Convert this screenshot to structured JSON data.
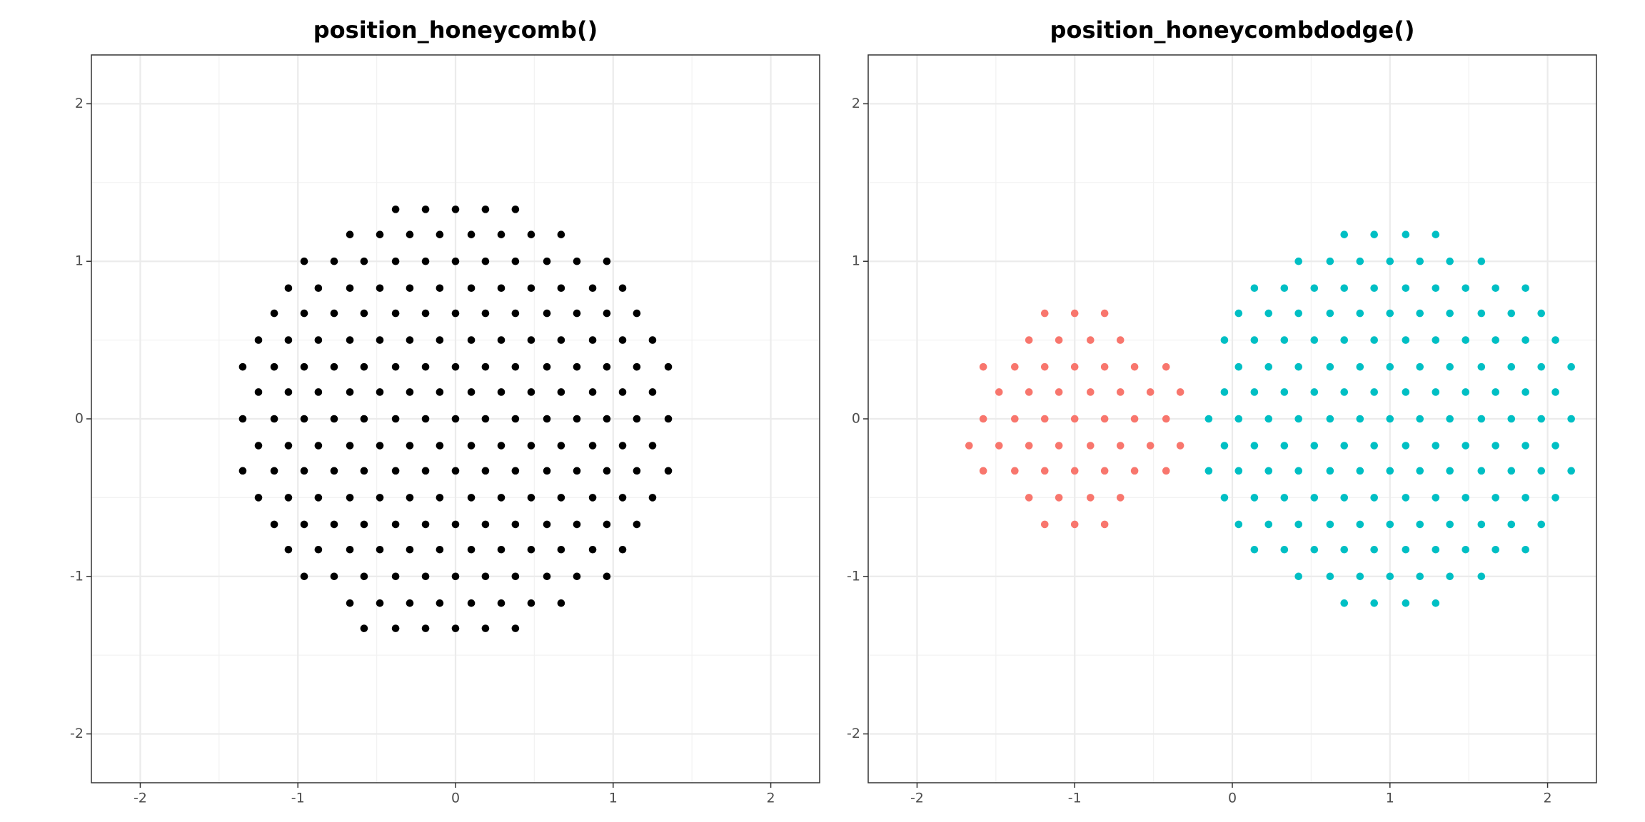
{
  "chart_data": [
    {
      "type": "scatter",
      "title": "position_honeycomb()",
      "xlim": [
        -2.31,
        2.31
      ],
      "ylim": [
        -2.31,
        2.31
      ],
      "xticks": [
        -2,
        -1,
        0,
        1,
        2
      ],
      "yticks": [
        -2,
        -1,
        0,
        1,
        2
      ],
      "minor_xticks": [
        -1.5,
        -0.5,
        0.5,
        1.5
      ],
      "minor_yticks": [
        -1.5,
        -0.5,
        0.5,
        1.5
      ],
      "grid": true,
      "series": [
        {
          "color": "#000000",
          "x": [
            -0.38,
            -0.19,
            0,
            0.19,
            0.38,
            -0.67,
            -0.48,
            -0.29,
            -0.1,
            0.1,
            0.29,
            0.48,
            0.67,
            -0.96,
            -0.77,
            -0.58,
            -0.38,
            -0.19,
            0,
            0.19,
            0.38,
            0.58,
            0.77,
            0.96,
            -1.06,
            -0.87,
            -0.67,
            -0.48,
            -0.29,
            -0.1,
            0.1,
            0.29,
            0.48,
            0.67,
            0.87,
            1.06,
            -1.15,
            -0.96,
            -0.77,
            -0.58,
            -0.38,
            -0.19,
            0,
            0.19,
            0.38,
            0.58,
            0.77,
            0.96,
            1.15,
            -1.25,
            -1.06,
            -0.87,
            -0.67,
            -0.48,
            -0.29,
            -0.1,
            0.1,
            0.29,
            0.48,
            0.67,
            0.87,
            1.06,
            1.25,
            -1.35,
            -1.15,
            -0.96,
            -0.77,
            -0.58,
            -0.38,
            -0.19,
            0,
            0.19,
            0.38,
            0.58,
            0.77,
            0.96,
            1.15,
            1.35,
            -1.25,
            -1.06,
            -0.87,
            -0.67,
            -0.48,
            -0.29,
            -0.1,
            0.1,
            0.29,
            0.48,
            0.67,
            0.87,
            1.06,
            1.25,
            -1.35,
            -1.15,
            -0.96,
            -0.77,
            -0.58,
            -0.38,
            -0.19,
            0,
            0.19,
            0.38,
            0.58,
            0.77,
            0.96,
            1.15,
            1.35,
            -1.25,
            -1.06,
            -0.87,
            -0.67,
            -0.48,
            -0.29,
            -0.1,
            0.1,
            0.29,
            0.48,
            0.67,
            0.87,
            1.06,
            1.25,
            -1.35,
            -1.15,
            -0.96,
            -0.77,
            -0.58,
            -0.38,
            -0.19,
            0,
            0.19,
            0.38,
            0.58,
            0.77,
            0.96,
            1.15,
            1.35,
            -1.25,
            -1.06,
            -0.87,
            -0.67,
            -0.48,
            -0.29,
            -0.1,
            0.1,
            0.29,
            0.48,
            0.67,
            0.87,
            1.06,
            1.25,
            -1.15,
            -0.96,
            -0.77,
            -0.58,
            -0.38,
            -0.19,
            0,
            0.19,
            0.38,
            0.58,
            0.77,
            0.96,
            1.15,
            -1.06,
            -0.87,
            -0.67,
            -0.48,
            -0.29,
            -0.1,
            0.1,
            0.29,
            0.48,
            0.67,
            0.87,
            1.06,
            -0.96,
            -0.77,
            -0.58,
            -0.38,
            -0.19,
            0,
            0.19,
            0.38,
            0.58,
            0.77,
            0.96,
            -0.67,
            -0.48,
            -0.29,
            -0.1,
            0.1,
            0.29,
            0.48,
            0.67,
            -0.58,
            -0.38,
            -0.19,
            0,
            0.19,
            0.38
          ],
          "values": [
            1.33,
            1.33,
            1.33,
            1.33,
            1.33,
            1.17,
            1.17,
            1.17,
            1.17,
            1.17,
            1.17,
            1.17,
            1.17,
            1,
            1,
            1,
            1,
            1,
            1,
            1,
            1,
            1,
            1,
            1,
            0.83,
            0.83,
            0.83,
            0.83,
            0.83,
            0.83,
            0.83,
            0.83,
            0.83,
            0.83,
            0.83,
            0.83,
            0.67,
            0.67,
            0.67,
            0.67,
            0.67,
            0.67,
            0.67,
            0.67,
            0.67,
            0.67,
            0.67,
            0.67,
            0.67,
            0.5,
            0.5,
            0.5,
            0.5,
            0.5,
            0.5,
            0.5,
            0.5,
            0.5,
            0.5,
            0.5,
            0.5,
            0.5,
            0.5,
            0.33,
            0.33,
            0.33,
            0.33,
            0.33,
            0.33,
            0.33,
            0.33,
            0.33,
            0.33,
            0.33,
            0.33,
            0.33,
            0.33,
            0.33,
            0.17,
            0.17,
            0.17,
            0.17,
            0.17,
            0.17,
            0.17,
            0.17,
            0.17,
            0.17,
            0.17,
            0.17,
            0.17,
            0.17,
            0,
            0,
            0,
            0,
            0,
            0,
            0,
            0,
            0,
            0,
            0,
            0,
            0,
            0,
            0,
            -0.17,
            -0.17,
            -0.17,
            -0.17,
            -0.17,
            -0.17,
            -0.17,
            -0.17,
            -0.17,
            -0.17,
            -0.17,
            -0.17,
            -0.17,
            -0.17,
            -0.33,
            -0.33,
            -0.33,
            -0.33,
            -0.33,
            -0.33,
            -0.33,
            -0.33,
            -0.33,
            -0.33,
            -0.33,
            -0.33,
            -0.33,
            -0.33,
            -0.33,
            -0.5,
            -0.5,
            -0.5,
            -0.5,
            -0.5,
            -0.5,
            -0.5,
            -0.5,
            -0.5,
            -0.5,
            -0.5,
            -0.5,
            -0.5,
            -0.5,
            -0.67,
            -0.67,
            -0.67,
            -0.67,
            -0.67,
            -0.67,
            -0.67,
            -0.67,
            -0.67,
            -0.67,
            -0.67,
            -0.67,
            -0.67,
            -0.83,
            -0.83,
            -0.83,
            -0.83,
            -0.83,
            -0.83,
            -0.83,
            -0.83,
            -0.83,
            -0.83,
            -0.83,
            -0.83,
            -1,
            -1,
            -1,
            -1,
            -1,
            -1,
            -1,
            -1,
            -1,
            -1,
            -1,
            -1.17,
            -1.17,
            -1.17,
            -1.17,
            -1.17,
            -1.17,
            -1.17,
            -1.17,
            -1.33,
            -1.33,
            -1.33,
            -1.33,
            -1.33,
            -1.33
          ]
        }
      ]
    },
    {
      "type": "scatter",
      "title": "position_honeycombdodge()",
      "xlim": [
        -2.31,
        2.31
      ],
      "ylim": [
        -2.31,
        2.31
      ],
      "xticks": [
        -2,
        -1,
        0,
        1,
        2
      ],
      "yticks": [
        -2,
        -1,
        0,
        1,
        2
      ],
      "minor_xticks": [
        -1.5,
        -0.5,
        0.5,
        1.5
      ],
      "minor_yticks": [
        -1.5,
        -0.5,
        0.5,
        1.5
      ],
      "grid": true,
      "series": [
        {
          "color": "#F8766D",
          "x": [
            -1.19,
            -1,
            -0.81,
            -1.29,
            -1.1,
            -0.9,
            -0.71,
            -1.58,
            -1.38,
            -1.19,
            -1,
            -0.81,
            -0.62,
            -0.42,
            -1.48,
            -1.29,
            -1.1,
            -0.9,
            -0.71,
            -0.52,
            -0.33,
            -1.58,
            -1.38,
            -1.19,
            -1,
            -0.81,
            -0.62,
            -0.42,
            -1.67,
            -1.48,
            -1.29,
            -1.1,
            -0.9,
            -0.71,
            -0.52,
            -0.33,
            -1.58,
            -1.38,
            -1.19,
            -1,
            -0.81,
            -0.62,
            -0.42,
            -1.29,
            -1.1,
            -0.9,
            -0.71,
            -1.19,
            -1,
            -0.81
          ],
          "values": [
            0.67,
            0.67,
            0.67,
            0.5,
            0.5,
            0.5,
            0.5,
            0.33,
            0.33,
            0.33,
            0.33,
            0.33,
            0.33,
            0.33,
            0.17,
            0.17,
            0.17,
            0.17,
            0.17,
            0.17,
            0.17,
            0,
            0,
            0,
            0,
            0,
            0,
            0,
            -0.17,
            -0.17,
            -0.17,
            -0.17,
            -0.17,
            -0.17,
            -0.17,
            -0.17,
            -0.33,
            -0.33,
            -0.33,
            -0.33,
            -0.33,
            -0.33,
            -0.33,
            -0.5,
            -0.5,
            -0.5,
            -0.5,
            -0.67,
            -0.67,
            -0.67
          ]
        },
        {
          "color": "#00BFC4",
          "x": [
            0.71,
            0.9,
            1.1,
            1.29,
            0.42,
            0.62,
            0.81,
            1,
            1.19,
            1.38,
            1.58,
            0.14,
            0.33,
            0.52,
            0.71,
            0.9,
            1.1,
            1.29,
            1.48,
            1.67,
            1.86,
            0.04,
            0.23,
            0.42,
            0.62,
            0.81,
            1,
            1.19,
            1.38,
            1.58,
            1.77,
            1.96,
            -0.05,
            0.14,
            0.33,
            0.52,
            0.71,
            0.9,
            1.1,
            1.29,
            1.48,
            1.67,
            1.86,
            2.05,
            0.04,
            0.23,
            0.42,
            0.62,
            0.81,
            1,
            1.19,
            1.38,
            1.58,
            1.77,
            1.96,
            2.15,
            -0.05,
            0.14,
            0.33,
            0.52,
            0.71,
            0.9,
            1.1,
            1.29,
            1.48,
            1.67,
            1.86,
            2.05,
            -0.15,
            0.04,
            0.23,
            0.42,
            0.62,
            0.81,
            1,
            1.19,
            1.38,
            1.58,
            1.77,
            1.96,
            2.15,
            -0.05,
            0.14,
            0.33,
            0.52,
            0.71,
            0.9,
            1.1,
            1.29,
            1.48,
            1.67,
            1.86,
            2.05,
            -0.15,
            0.04,
            0.23,
            0.42,
            0.62,
            0.81,
            1,
            1.19,
            1.38,
            1.58,
            1.77,
            1.96,
            2.15,
            -0.05,
            0.14,
            0.33,
            0.52,
            0.71,
            0.9,
            1.1,
            1.29,
            1.48,
            1.67,
            1.86,
            2.05,
            0.04,
            0.23,
            0.42,
            0.62,
            0.81,
            1,
            1.19,
            1.38,
            1.58,
            1.77,
            1.96,
            0.14,
            0.33,
            0.52,
            0.71,
            0.9,
            1.1,
            1.29,
            1.48,
            1.67,
            1.86,
            0.42,
            0.62,
            0.81,
            1,
            1.19,
            1.38,
            1.58,
            0.71,
            0.9,
            1.1,
            1.29
          ],
          "values": [
            1.17,
            1.17,
            1.17,
            1.17,
            1,
            1,
            1,
            1,
            1,
            1,
            1,
            0.83,
            0.83,
            0.83,
            0.83,
            0.83,
            0.83,
            0.83,
            0.83,
            0.83,
            0.83,
            0.67,
            0.67,
            0.67,
            0.67,
            0.67,
            0.67,
            0.67,
            0.67,
            0.67,
            0.67,
            0.67,
            0.5,
            0.5,
            0.5,
            0.5,
            0.5,
            0.5,
            0.5,
            0.5,
            0.5,
            0.5,
            0.5,
            0.5,
            0.33,
            0.33,
            0.33,
            0.33,
            0.33,
            0.33,
            0.33,
            0.33,
            0.33,
            0.33,
            0.33,
            0.33,
            0.17,
            0.17,
            0.17,
            0.17,
            0.17,
            0.17,
            0.17,
            0.17,
            0.17,
            0.17,
            0.17,
            0.17,
            0,
            0,
            0,
            0,
            0,
            0,
            0,
            0,
            0,
            0,
            0,
            0,
            0,
            -0.17,
            -0.17,
            -0.17,
            -0.17,
            -0.17,
            -0.17,
            -0.17,
            -0.17,
            -0.17,
            -0.17,
            -0.17,
            -0.17,
            -0.33,
            -0.33,
            -0.33,
            -0.33,
            -0.33,
            -0.33,
            -0.33,
            -0.33,
            -0.33,
            -0.33,
            -0.33,
            -0.33,
            -0.33,
            -0.5,
            -0.5,
            -0.5,
            -0.5,
            -0.5,
            -0.5,
            -0.5,
            -0.5,
            -0.5,
            -0.5,
            -0.5,
            -0.5,
            -0.67,
            -0.67,
            -0.67,
            -0.67,
            -0.67,
            -0.67,
            -0.67,
            -0.67,
            -0.67,
            -0.67,
            -0.67,
            -0.83,
            -0.83,
            -0.83,
            -0.83,
            -0.83,
            -0.83,
            -0.83,
            -0.83,
            -0.83,
            -0.83,
            -1,
            -1,
            -1,
            -1,
            -1,
            -1,
            -1,
            -1.17,
            -1.17,
            -1.17,
            -1.17
          ]
        }
      ]
    }
  ]
}
